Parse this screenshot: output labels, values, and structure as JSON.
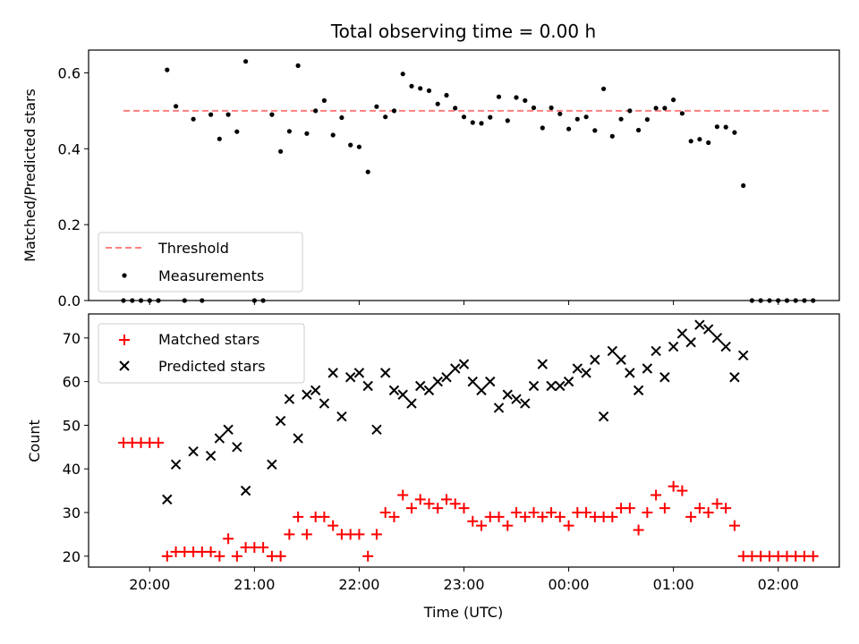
{
  "chart_data": [
    {
      "type": "scatter",
      "title": "Total observing time = 0.00 h",
      "xlabel": "",
      "ylabel": "Matched/Predicted stars",
      "ylim": [
        0,
        0.66
      ],
      "yticks": [
        0.0,
        0.2,
        0.4,
        0.6
      ],
      "ytick_labels": [
        "0.0",
        "0.2",
        "0.4",
        "0.6"
      ],
      "legend_position": "lower-left",
      "threshold": {
        "name": "Threshold",
        "y": 0.5,
        "x_range": [
          "19:45",
          "02:30"
        ],
        "color": "#ff7f7f",
        "style": "dashed"
      },
      "series": [
        {
          "name": "Measurements",
          "color": "#000000",
          "marker": "dot",
          "points": [
            [
              "19:45",
              0.0
            ],
            [
              "19:50",
              0.0
            ],
            [
              "19:55",
              0.0
            ],
            [
              "20:00",
              0.0
            ],
            [
              "20:05",
              0.0
            ],
            [
              "20:10",
              0.608
            ],
            [
              "20:15",
              0.512
            ],
            [
              "20:20",
              0.0
            ],
            [
              "20:25",
              0.478
            ],
            [
              "20:30",
              0.0
            ],
            [
              "20:35",
              0.49
            ],
            [
              "20:40",
              0.426
            ],
            [
              "20:45",
              0.49
            ],
            [
              "20:50",
              0.445
            ],
            [
              "20:55",
              0.63
            ],
            [
              "21:00",
              0.0
            ],
            [
              "21:05",
              0.0
            ],
            [
              "21:10",
              0.49
            ],
            [
              "21:15",
              0.393
            ],
            [
              "21:20",
              0.446
            ],
            [
              "21:25",
              0.619
            ],
            [
              "21:30",
              0.44
            ],
            [
              "21:35",
              0.5
            ],
            [
              "21:40",
              0.527
            ],
            [
              "21:45",
              0.436
            ],
            [
              "21:50",
              0.482
            ],
            [
              "21:55",
              0.41
            ],
            [
              "22:00",
              0.405
            ],
            [
              "22:05",
              0.339
            ],
            [
              "22:10",
              0.511
            ],
            [
              "22:15",
              0.484
            ],
            [
              "22:20",
              0.5
            ],
            [
              "22:25",
              0.597
            ],
            [
              "22:30",
              0.565
            ],
            [
              "22:35",
              0.559
            ],
            [
              "22:40",
              0.553
            ],
            [
              "22:45",
              0.518
            ],
            [
              "22:50",
              0.541
            ],
            [
              "22:55",
              0.507
            ],
            [
              "23:00",
              0.484
            ],
            [
              "23:05",
              0.469
            ],
            [
              "23:10",
              0.467
            ],
            [
              "23:15",
              0.483
            ],
            [
              "23:20",
              0.537
            ],
            [
              "23:25",
              0.474
            ],
            [
              "23:30",
              0.535
            ],
            [
              "23:35",
              0.527
            ],
            [
              "23:40",
              0.508
            ],
            [
              "23:45",
              0.455
            ],
            [
              "23:50",
              0.508
            ],
            [
              "23:55",
              0.492
            ],
            [
              "00:00",
              0.452
            ],
            [
              "00:05",
              0.478
            ],
            [
              "00:10",
              0.484
            ],
            [
              "00:15",
              0.448
            ],
            [
              "00:20",
              0.558
            ],
            [
              "00:25",
              0.433
            ],
            [
              "00:30",
              0.478
            ],
            [
              "00:35",
              0.5
            ],
            [
              "00:40",
              0.449
            ],
            [
              "00:45",
              0.477
            ],
            [
              "00:50",
              0.507
            ],
            [
              "00:55",
              0.507
            ],
            [
              "01:00",
              0.529
            ],
            [
              "01:05",
              0.493
            ],
            [
              "01:10",
              0.42
            ],
            [
              "01:15",
              0.425
            ],
            [
              "01:20",
              0.416
            ],
            [
              "01:25",
              0.458
            ],
            [
              "01:30",
              0.457
            ],
            [
              "01:35",
              0.443
            ],
            [
              "01:40",
              0.303
            ],
            [
              "01:45",
              0.0
            ],
            [
              "01:50",
              0.0
            ],
            [
              "01:55",
              0.0
            ],
            [
              "02:00",
              0.0
            ],
            [
              "02:05",
              0.0
            ],
            [
              "02:10",
              0.0
            ],
            [
              "02:15",
              0.0
            ],
            [
              "02:20",
              0.0
            ]
          ]
        }
      ]
    },
    {
      "type": "scatter",
      "title": "",
      "xlabel": "Time (UTC)",
      "ylabel": "Count",
      "ylim": [
        17.5,
        75.5
      ],
      "yticks": [
        20,
        30,
        40,
        50,
        60,
        70
      ],
      "ytick_labels": [
        "20",
        "30",
        "40",
        "50",
        "60",
        "70"
      ],
      "xlim": [
        "19:25",
        "02:35"
      ],
      "xticks": [
        "20:00",
        "21:00",
        "22:00",
        "23:00",
        "00:00",
        "01:00",
        "02:00"
      ],
      "xtick_labels": [
        "20:00",
        "21:00",
        "22:00",
        "23:00",
        "00:00",
        "01:00",
        "02:00"
      ],
      "legend_position": "upper-left",
      "series": [
        {
          "name": "Matched stars",
          "color": "#ff0000",
          "marker": "plus",
          "points": [
            [
              "19:45",
              46
            ],
            [
              "19:50",
              46
            ],
            [
              "19:55",
              46
            ],
            [
              "20:00",
              46
            ],
            [
              "20:05",
              46
            ],
            [
              "20:10",
              20
            ],
            [
              "20:15",
              21
            ],
            [
              "20:20",
              21
            ],
            [
              "20:25",
              21
            ],
            [
              "20:30",
              21
            ],
            [
              "20:35",
              21
            ],
            [
              "20:40",
              20
            ],
            [
              "20:45",
              24
            ],
            [
              "20:50",
              20
            ],
            [
              "20:55",
              22
            ],
            [
              "21:00",
              22
            ],
            [
              "21:05",
              22
            ],
            [
              "21:10",
              20
            ],
            [
              "21:15",
              20
            ],
            [
              "21:20",
              25
            ],
            [
              "21:25",
              29
            ],
            [
              "21:30",
              25
            ],
            [
              "21:35",
              29
            ],
            [
              "21:40",
              29
            ],
            [
              "21:45",
              27
            ],
            [
              "21:50",
              25
            ],
            [
              "21:55",
              25
            ],
            [
              "22:00",
              25
            ],
            [
              "22:05",
              20
            ],
            [
              "22:10",
              25
            ],
            [
              "22:15",
              30
            ],
            [
              "22:20",
              29
            ],
            [
              "22:25",
              34
            ],
            [
              "22:30",
              31
            ],
            [
              "22:35",
              33
            ],
            [
              "22:40",
              32
            ],
            [
              "22:45",
              31
            ],
            [
              "22:50",
              33
            ],
            [
              "22:55",
              32
            ],
            [
              "23:00",
              31
            ],
            [
              "23:05",
              28
            ],
            [
              "23:10",
              27
            ],
            [
              "23:15",
              29
            ],
            [
              "23:20",
              29
            ],
            [
              "23:25",
              27
            ],
            [
              "23:30",
              30
            ],
            [
              "23:35",
              29
            ],
            [
              "23:40",
              30
            ],
            [
              "23:45",
              29
            ],
            [
              "23:50",
              30
            ],
            [
              "23:55",
              29
            ],
            [
              "00:00",
              27
            ],
            [
              "00:05",
              30
            ],
            [
              "00:10",
              30
            ],
            [
              "00:15",
              29
            ],
            [
              "00:20",
              29
            ],
            [
              "00:25",
              29
            ],
            [
              "00:30",
              31
            ],
            [
              "00:35",
              31
            ],
            [
              "00:40",
              26
            ],
            [
              "00:45",
              30
            ],
            [
              "00:50",
              34
            ],
            [
              "00:55",
              31
            ],
            [
              "01:00",
              36
            ],
            [
              "01:05",
              35
            ],
            [
              "01:10",
              29
            ],
            [
              "01:15",
              31
            ],
            [
              "01:20",
              30
            ],
            [
              "01:25",
              32
            ],
            [
              "01:30",
              31
            ],
            [
              "01:35",
              27
            ],
            [
              "01:40",
              20
            ],
            [
              "01:45",
              20
            ],
            [
              "01:50",
              20
            ],
            [
              "01:55",
              20
            ],
            [
              "02:00",
              20
            ],
            [
              "02:05",
              20
            ],
            [
              "02:10",
              20
            ],
            [
              "02:15",
              20
            ],
            [
              "02:20",
              20
            ]
          ]
        },
        {
          "name": "Predicted stars",
          "color": "#000000",
          "marker": "x",
          "points": [
            [
              "20:10",
              33
            ],
            [
              "20:15",
              41
            ],
            [
              "20:25",
              44
            ],
            [
              "20:35",
              43
            ],
            [
              "20:40",
              47
            ],
            [
              "20:45",
              49
            ],
            [
              "20:50",
              45
            ],
            [
              "20:55",
              35
            ],
            [
              "21:10",
              41
            ],
            [
              "21:15",
              51
            ],
            [
              "21:20",
              56
            ],
            [
              "21:25",
              47
            ],
            [
              "21:30",
              57
            ],
            [
              "21:35",
              58
            ],
            [
              "21:40",
              55
            ],
            [
              "21:45",
              62
            ],
            [
              "21:50",
              52
            ],
            [
              "21:55",
              61
            ],
            [
              "22:00",
              62
            ],
            [
              "22:05",
              59
            ],
            [
              "22:10",
              49
            ],
            [
              "22:15",
              62
            ],
            [
              "22:20",
              58
            ],
            [
              "22:25",
              57
            ],
            [
              "22:30",
              55
            ],
            [
              "22:35",
              59
            ],
            [
              "22:40",
              58
            ],
            [
              "22:45",
              60
            ],
            [
              "22:50",
              61
            ],
            [
              "22:55",
              63
            ],
            [
              "23:00",
              64
            ],
            [
              "23:05",
              60
            ],
            [
              "23:10",
              58
            ],
            [
              "23:15",
              60
            ],
            [
              "23:20",
              54
            ],
            [
              "23:25",
              57
            ],
            [
              "23:30",
              56
            ],
            [
              "23:35",
              55
            ],
            [
              "23:40",
              59
            ],
            [
              "23:45",
              64
            ],
            [
              "23:50",
              59
            ],
            [
              "23:55",
              59
            ],
            [
              "00:00",
              60
            ],
            [
              "00:05",
              63
            ],
            [
              "00:10",
              62
            ],
            [
              "00:15",
              65
            ],
            [
              "00:20",
              52
            ],
            [
              "00:25",
              67
            ],
            [
              "00:30",
              65
            ],
            [
              "00:35",
              62
            ],
            [
              "00:40",
              58
            ],
            [
              "00:45",
              63
            ],
            [
              "00:50",
              67
            ],
            [
              "00:55",
              61
            ],
            [
              "01:00",
              68
            ],
            [
              "01:05",
              71
            ],
            [
              "01:10",
              69
            ],
            [
              "01:15",
              73
            ],
            [
              "01:20",
              72
            ],
            [
              "01:25",
              70
            ],
            [
              "01:30",
              68
            ],
            [
              "01:35",
              61
            ],
            [
              "01:40",
              66
            ]
          ]
        }
      ]
    }
  ]
}
